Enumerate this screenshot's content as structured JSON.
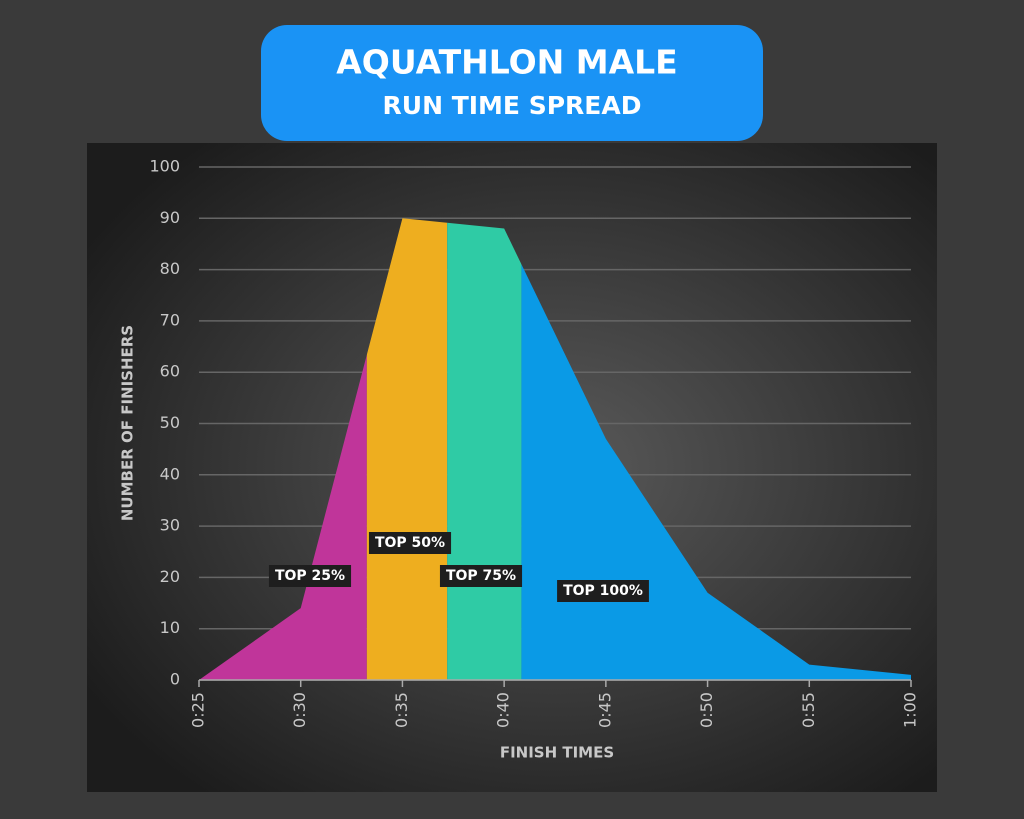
{
  "chart_data": {
    "type": "area",
    "title": "AQUATHLON MALE",
    "subtitle": "RUN TIME SPREAD",
    "x_label": "FINISH TIMES",
    "y_label": "NUMBER OF FINISHERS",
    "x": [
      25,
      30,
      35,
      40,
      45,
      50,
      55,
      60
    ],
    "values": [
      0,
      14,
      90,
      88,
      47,
      17,
      3,
      1
    ],
    "xlim": [
      25,
      60
    ],
    "xticks": [
      {
        "value": 25,
        "label": "0:25"
      },
      {
        "value": 30,
        "label": "0:30"
      },
      {
        "value": 35,
        "label": "0:35"
      },
      {
        "value": 40,
        "label": "0:40"
      },
      {
        "value": 45,
        "label": "0:45"
      },
      {
        "value": 50,
        "label": "0:50"
      },
      {
        "value": 55,
        "label": "0:55"
      },
      {
        "value": 60,
        "label": "1:00"
      }
    ],
    "ylim": [
      0,
      100
    ],
    "yticks": [
      0,
      10,
      20,
      30,
      40,
      50,
      60,
      70,
      80,
      90,
      100
    ],
    "grid": true,
    "bands": [
      {
        "label": "TOP 25%",
        "color": "#c0359a",
        "from": 25,
        "to": 33.25
      },
      {
        "label": "TOP 50%",
        "color": "#eeae1f",
        "from": 33.25,
        "to": 37.2
      },
      {
        "label": "TOP 75%",
        "color": "#2fcba5",
        "from": 37.2,
        "to": 40.85
      },
      {
        "label": "TOP 100%",
        "color": "#0a9ae6",
        "from": 40.85,
        "to": 60
      }
    ]
  }
}
